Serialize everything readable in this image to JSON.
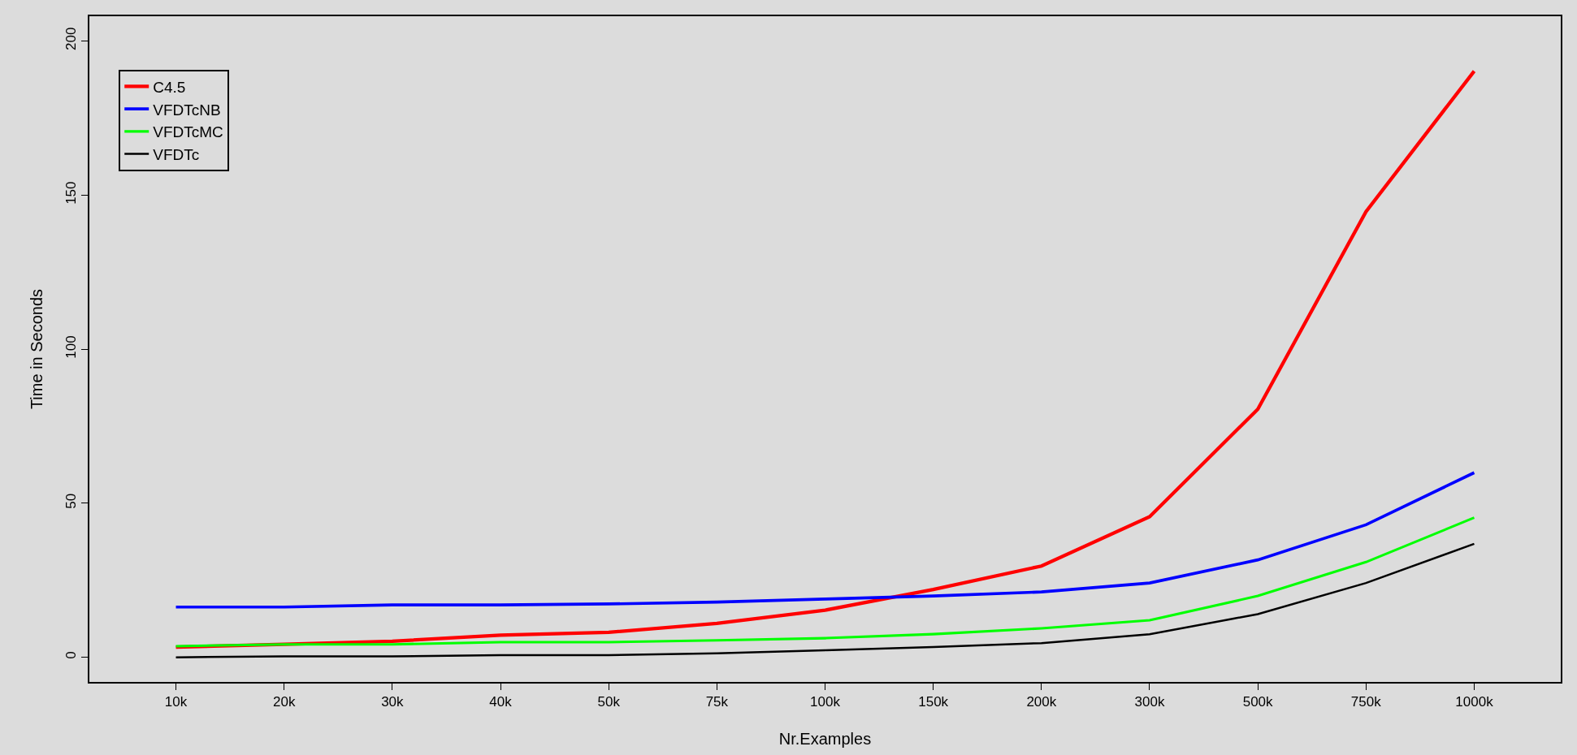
{
  "chart_data": {
    "type": "line",
    "xlabel": "Nr.Examples",
    "ylabel": "Time in Seconds",
    "categories": [
      "10k",
      "20k",
      "30k",
      "40k",
      "50k",
      "75k",
      "100k",
      "150k",
      "200k",
      "300k",
      "500k",
      "750k",
      "1000k"
    ],
    "series": [
      {
        "name": "C4.5",
        "color": "#ff0000",
        "values": [
          3.3,
          4.2,
          5.2,
          7.2,
          8.1,
          11,
          15.3,
          22,
          29.6,
          45.6,
          80.5,
          144.6,
          190.2
        ]
      },
      {
        "name": "VFDTcNB",
        "color": "#0000ff",
        "values": [
          16.3,
          16.3,
          17,
          17,
          17.3,
          17.9,
          18.9,
          19.9,
          21.2,
          24.1,
          31.6,
          43,
          59.9
        ]
      },
      {
        "name": "VFDTcMC",
        "color": "#00ff00",
        "values": [
          3.6,
          4.2,
          4.2,
          4.9,
          4.9,
          5.5,
          6.2,
          7.5,
          9.4,
          12,
          19.9,
          30.9,
          45.3
        ]
      },
      {
        "name": "VFDTc",
        "color": "#000000",
        "values": [
          0,
          0.3,
          0.3,
          0.7,
          0.7,
          1.3,
          2.3,
          3.3,
          4.6,
          7.5,
          14,
          24.1,
          36.8
        ]
      }
    ],
    "ylim": [
      -8,
      208
    ],
    "yticks": [
      0,
      50,
      100,
      150,
      200
    ],
    "grid": false,
    "legend": "top left",
    "marker": "none",
    "line_style": "solid"
  }
}
